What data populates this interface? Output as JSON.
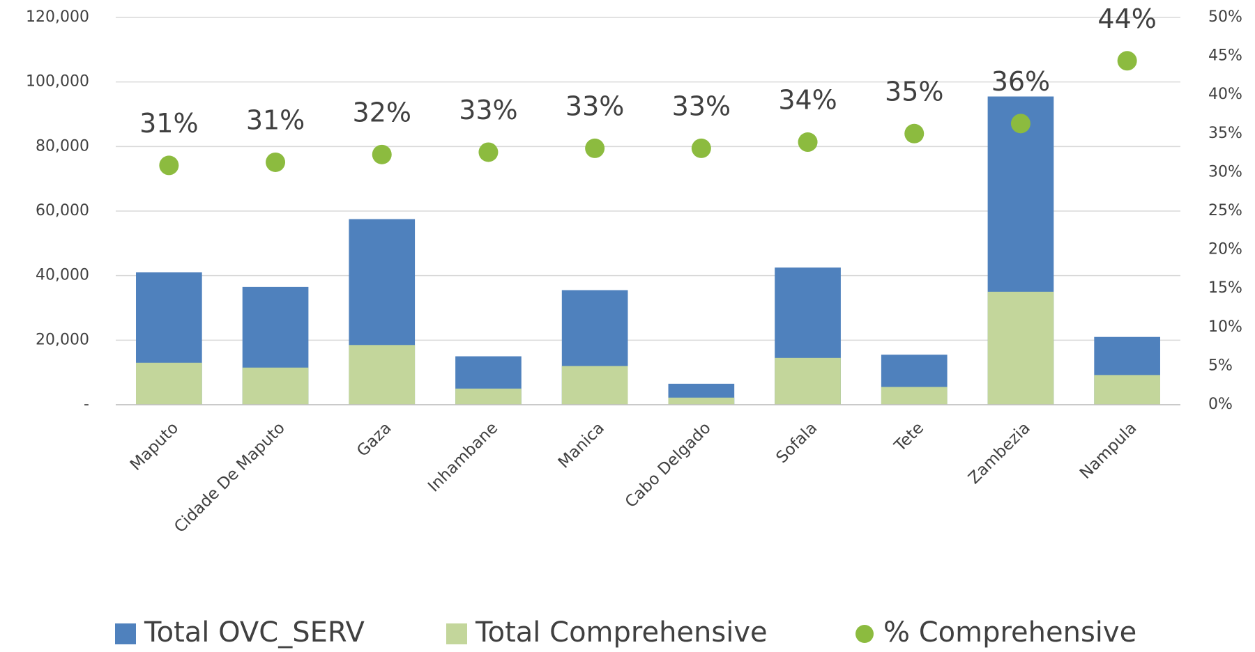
{
  "chart_data": {
    "type": "bar",
    "categories": [
      "Maputo",
      "Cidade De Maputo",
      "Gaza",
      "Inhambane",
      "Manica",
      "Cabo Delgado",
      "Sofala",
      "Tete",
      "Zambezia",
      "Nampula"
    ],
    "series": [
      {
        "name": "Total OVC_SERV",
        "type": "bar",
        "color": "#4f81bd",
        "values": [
          41000,
          36500,
          57500,
          15000,
          35500,
          6500,
          42500,
          15500,
          95500,
          21000
        ]
      },
      {
        "name": "Total Comprehensive",
        "type": "bar",
        "color": "#c3d69b",
        "values": [
          13000,
          11500,
          18500,
          5000,
          12000,
          2200,
          14500,
          5500,
          35000,
          9200
        ]
      },
      {
        "name": "% Comprehensive",
        "type": "scatter",
        "axis": "y2",
        "color": "#8cbb3f",
        "values": [
          30.9,
          31.3,
          32.3,
          32.6,
          33.1,
          33.1,
          33.9,
          35.0,
          36.3,
          44.4
        ],
        "value_labels": [
          "31%",
          "31%",
          "32%",
          "33%",
          "33%",
          "33%",
          "34%",
          "35%",
          "36%",
          "44%"
        ]
      }
    ],
    "ylim": [
      0,
      120000
    ],
    "yticks": [
      {
        "value": 0,
        "label": "-"
      },
      {
        "value": 20000,
        "label": "20,000"
      },
      {
        "value": 40000,
        "label": "40,000"
      },
      {
        "value": 60000,
        "label": "60,000"
      },
      {
        "value": 80000,
        "label": "80,000"
      },
      {
        "value": 100000,
        "label": "100,000"
      },
      {
        "value": 120000,
        "label": "120,000"
      }
    ],
    "y2lim": [
      0,
      50
    ],
    "y2ticks": [
      {
        "value": 0,
        "label": "0%"
      },
      {
        "value": 5,
        "label": "5%"
      },
      {
        "value": 10,
        "label": "10%"
      },
      {
        "value": 15,
        "label": "15%"
      },
      {
        "value": 20,
        "label": "20%"
      },
      {
        "value": 25,
        "label": "25%"
      },
      {
        "value": 30,
        "label": "30%"
      },
      {
        "value": 35,
        "label": "35%"
      },
      {
        "value": 40,
        "label": "40%"
      },
      {
        "value": 45,
        "label": "45%"
      },
      {
        "value": 50,
        "label": "50%"
      }
    ],
    "grid": true,
    "legend": "bottom"
  }
}
